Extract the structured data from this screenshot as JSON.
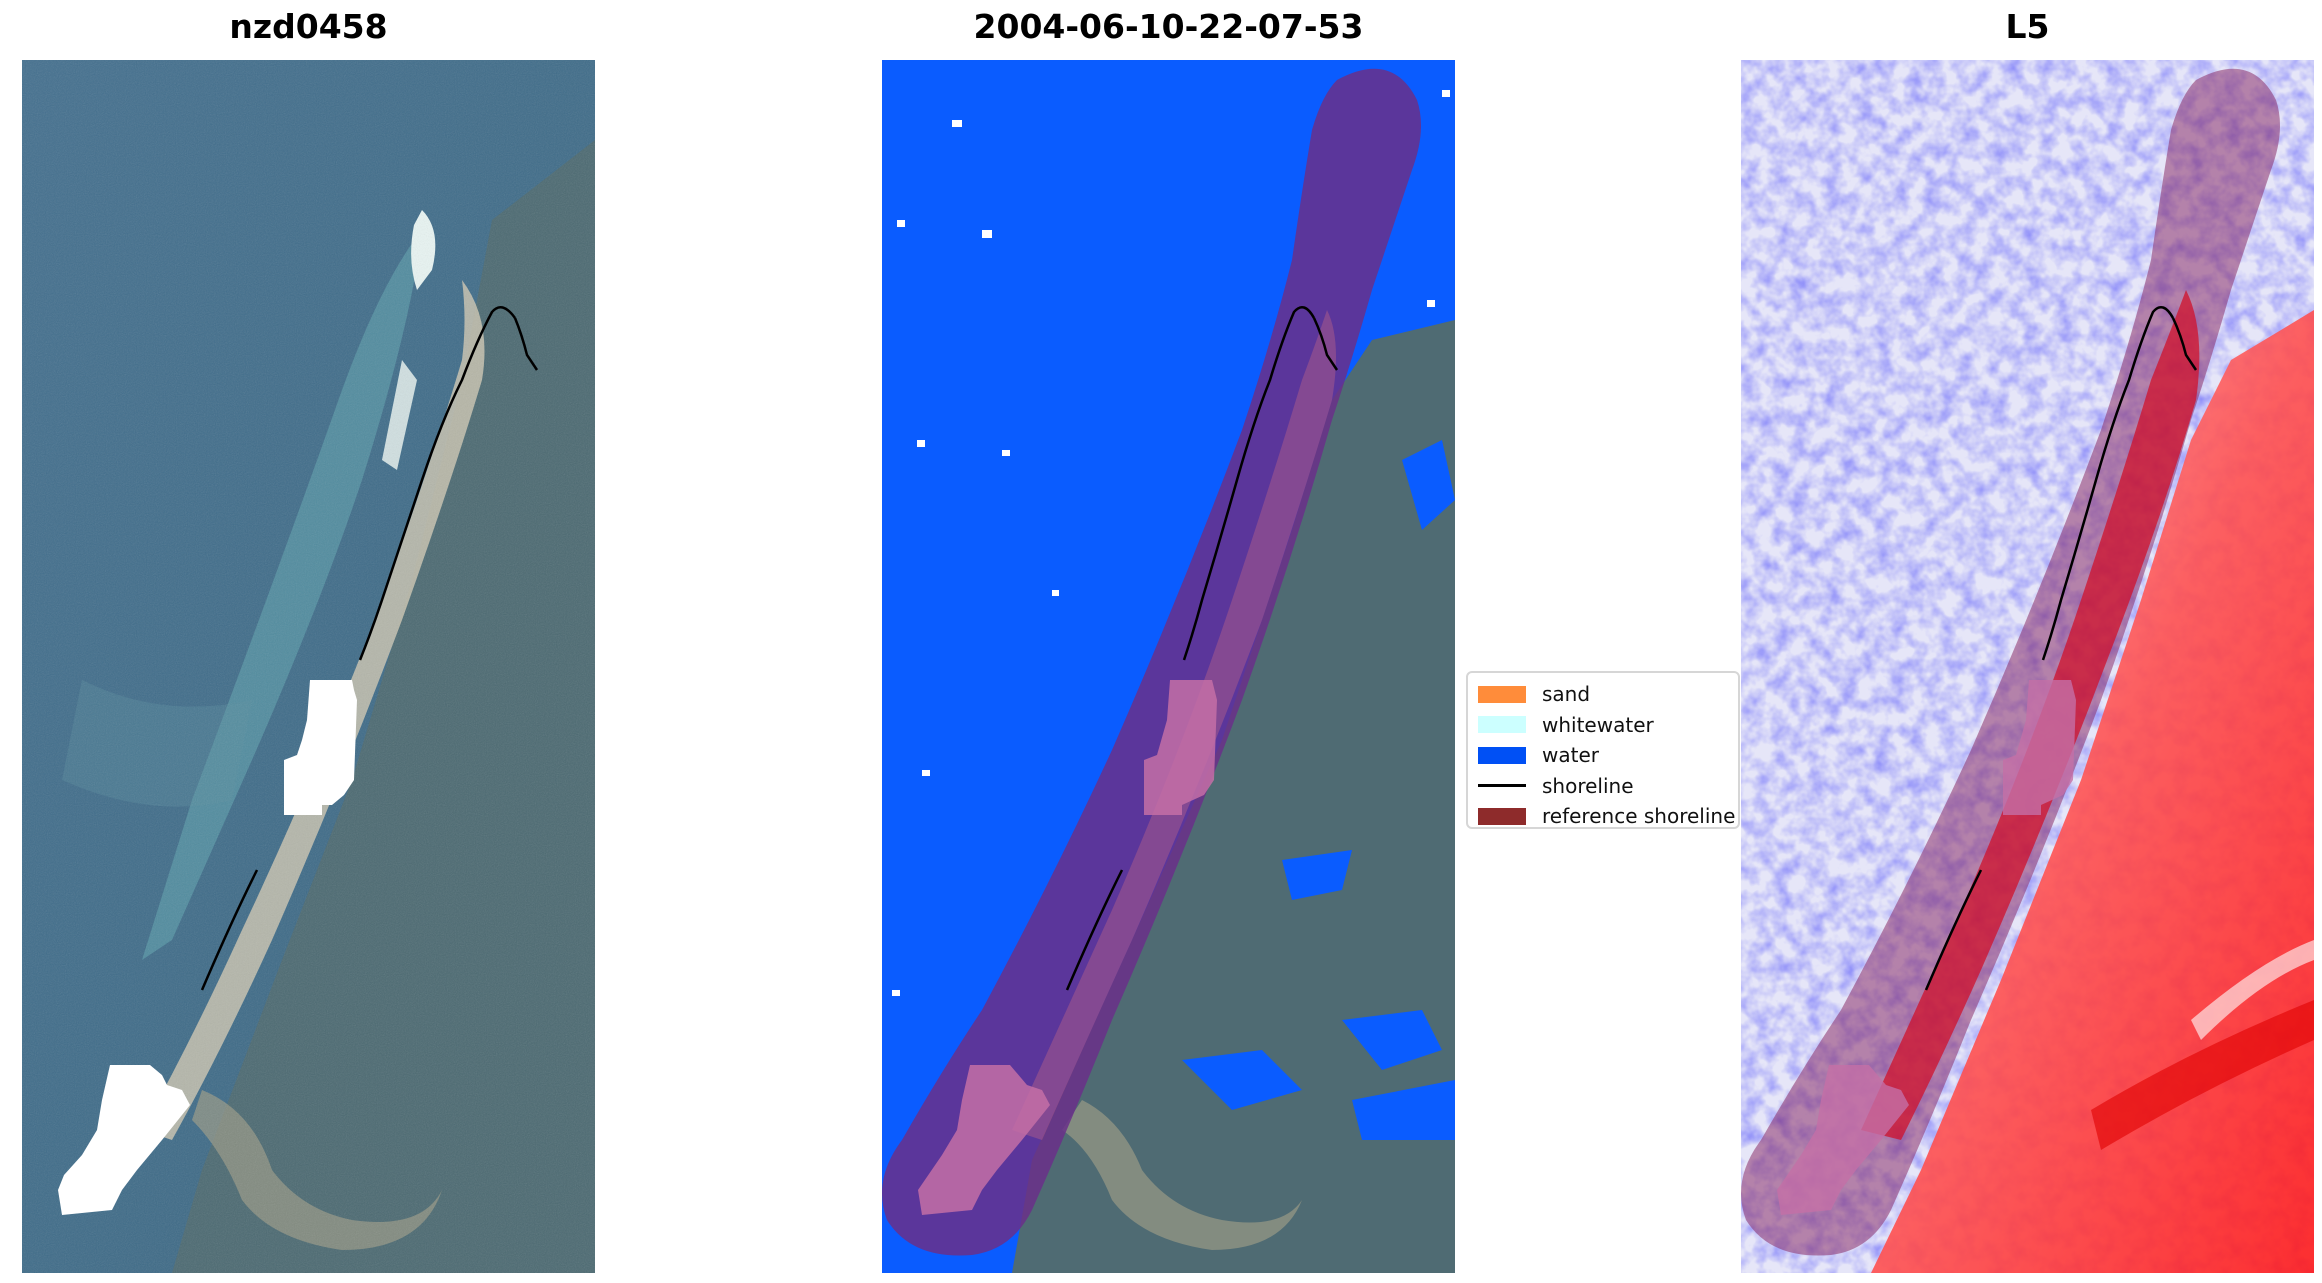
{
  "panels": [
    {
      "title": "nzd0458"
    },
    {
      "title": "2004-06-10-22-07-53"
    },
    {
      "title": "L5"
    }
  ],
  "legend": {
    "items": [
      {
        "label": "sand",
        "color": "#ff8c3a",
        "kind": "patch"
      },
      {
        "label": "whitewater",
        "color": "#ccffff",
        "kind": "patch"
      },
      {
        "label": "water",
        "color": "#0050f5",
        "kind": "patch"
      },
      {
        "label": "shoreline",
        "color": "#000000",
        "kind": "line"
      },
      {
        "label": "reference shoreline",
        "color": "#8e2b2b",
        "kind": "patch"
      }
    ]
  },
  "colors": {
    "ocean": "#3e6a8e",
    "land": "#4f6b73",
    "water_class": "#0a5cff",
    "buffer": "#6a2f8a",
    "index_low": "#3a3af0",
    "index_high": "#ff1a1a"
  }
}
